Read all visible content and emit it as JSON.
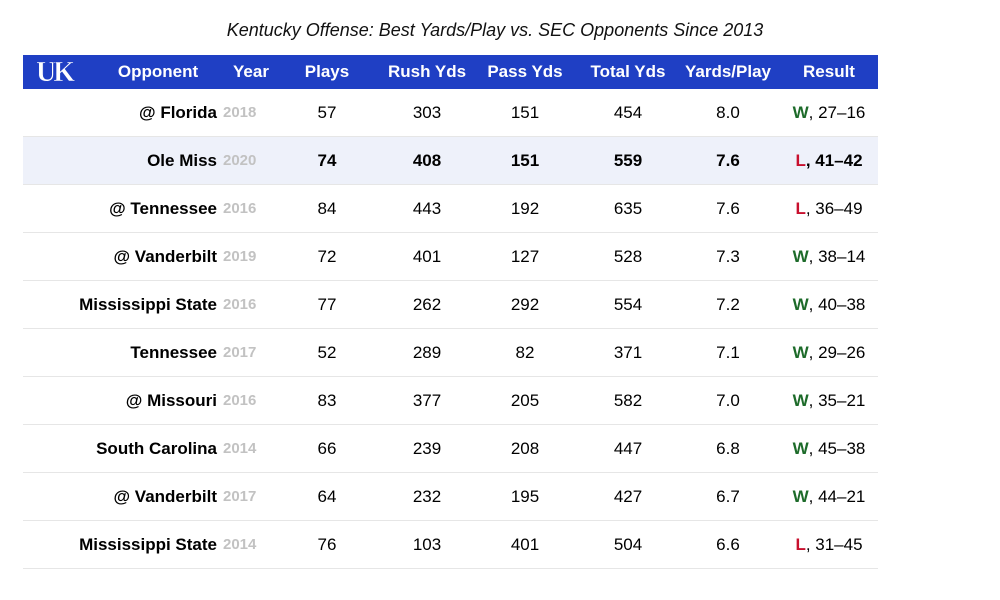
{
  "title": "Kentucky Offense: Best Yards/Play vs. SEC Opponents Since 2013",
  "logo": {
    "text": "UK",
    "color": "#ffffff"
  },
  "colors": {
    "header_bg": "#1f3fc4",
    "highlight_bg": "#eef1fa",
    "win": "#1d6b2a",
    "loss": "#c8102e",
    "year": "#c2c2c2"
  },
  "chart_data": {
    "type": "table",
    "title": "Kentucky Offense: Best Yards/Play vs. SEC Opponents Since 2013",
    "columns": [
      "Opponent",
      "Year",
      "Plays",
      "Rush Yds",
      "Pass Yds",
      "Total Yds",
      "Yards/Play",
      "Result"
    ],
    "rows": [
      {
        "opponent": "@ Florida",
        "year": "2018",
        "plays": "57",
        "rush": "303",
        "pass": "151",
        "total": "454",
        "ypp": "8.0",
        "wl": "W",
        "score": ", 27–16",
        "highlight": false
      },
      {
        "opponent": "Ole Miss",
        "year": "2020",
        "plays": "74",
        "rush": "408",
        "pass": "151",
        "total": "559",
        "ypp": "7.6",
        "wl": "L",
        "score": ", 41–42",
        "highlight": true
      },
      {
        "opponent": "@ Tennessee",
        "year": "2016",
        "plays": "84",
        "rush": "443",
        "pass": "192",
        "total": "635",
        "ypp": "7.6",
        "wl": "L",
        "score": ", 36–49",
        "highlight": false
      },
      {
        "opponent": "@ Vanderbilt",
        "year": "2019",
        "plays": "72",
        "rush": "401",
        "pass": "127",
        "total": "528",
        "ypp": "7.3",
        "wl": "W",
        "score": ", 38–14",
        "highlight": false
      },
      {
        "opponent": "Mississippi State",
        "year": "2016",
        "plays": "77",
        "rush": "262",
        "pass": "292",
        "total": "554",
        "ypp": "7.2",
        "wl": "W",
        "score": ", 40–38",
        "highlight": false
      },
      {
        "opponent": "Tennessee",
        "year": "2017",
        "plays": "52",
        "rush": "289",
        "pass": "82",
        "total": "371",
        "ypp": "7.1",
        "wl": "W",
        "score": ", 29–26",
        "highlight": false
      },
      {
        "opponent": "@ Missouri",
        "year": "2016",
        "plays": "83",
        "rush": "377",
        "pass": "205",
        "total": "582",
        "ypp": "7.0",
        "wl": "W",
        "score": ", 35–21",
        "highlight": false
      },
      {
        "opponent": "South Carolina",
        "year": "2014",
        "plays": "66",
        "rush": "239",
        "pass": "208",
        "total": "447",
        "ypp": "6.8",
        "wl": "W",
        "score": ", 45–38",
        "highlight": false
      },
      {
        "opponent": "@ Vanderbilt",
        "year": "2017",
        "plays": "64",
        "rush": "232",
        "pass": "195",
        "total": "427",
        "ypp": "6.7",
        "wl": "W",
        "score": ", 44–21",
        "highlight": false
      },
      {
        "opponent": "Mississippi State",
        "year": "2014",
        "plays": "76",
        "rush": "103",
        "pass": "401",
        "total": "504",
        "ypp": "6.6",
        "wl": "L",
        "score": ", 31–45",
        "highlight": false
      }
    ]
  }
}
